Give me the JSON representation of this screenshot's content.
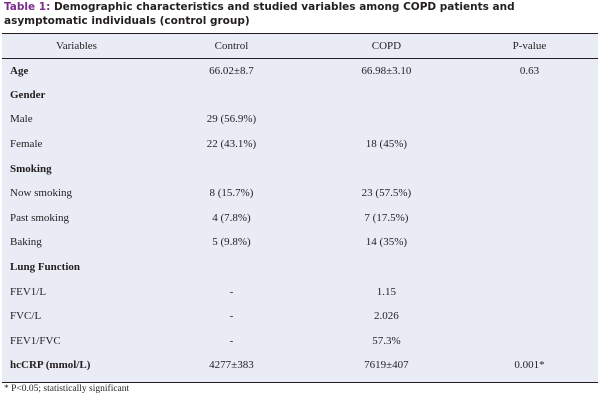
{
  "caption": {
    "label": "Table 1:",
    "text": " Demographic characteristics and studied variables among COPD patients and asymptomatic individuals (control group)"
  },
  "table": {
    "headers": [
      "Variables",
      "Control",
      "COPD",
      "P-value"
    ],
    "rows": [
      {
        "name": "row-age",
        "bold": true,
        "cells": [
          "Age",
          "66.02±8.7",
          "66.98±3.10",
          "0.63"
        ]
      },
      {
        "name": "row-gender",
        "bold": true,
        "cells": [
          "Gender",
          "",
          "",
          ""
        ]
      },
      {
        "name": "row-male",
        "bold": false,
        "cells": [
          "Male",
          "29 (56.9%)",
          "",
          ""
        ]
      },
      {
        "name": "row-female",
        "bold": false,
        "cells": [
          "Female",
          "22 (43.1%)",
          "18 (45%)",
          ""
        ]
      },
      {
        "name": "row-smoking",
        "bold": true,
        "cells": [
          "Smoking",
          "",
          "",
          ""
        ]
      },
      {
        "name": "row-now-smoking",
        "bold": false,
        "cells": [
          "Now smoking",
          "8 (15.7%)",
          "23 (57.5%)",
          ""
        ]
      },
      {
        "name": "row-past-smoking",
        "bold": false,
        "cells": [
          "Past smoking",
          "4 (7.8%)",
          "7 (17.5%)",
          ""
        ]
      },
      {
        "name": "row-baking",
        "bold": false,
        "cells": [
          "Baking",
          "5 (9.8%)",
          "14 (35%)",
          ""
        ]
      },
      {
        "name": "row-lung-function",
        "bold": true,
        "cells": [
          "Lung Function",
          "",
          "",
          ""
        ]
      },
      {
        "name": "row-fev1-l",
        "bold": false,
        "cells": [
          "FEV1/L",
          "-",
          "1.15",
          ""
        ]
      },
      {
        "name": "row-fvc-l",
        "bold": false,
        "cells": [
          "FVC/L",
          "-",
          "2.026",
          ""
        ]
      },
      {
        "name": "row-fev1-fvc",
        "bold": false,
        "cells": [
          "FEV1/FVC",
          "-",
          "57.3%",
          ""
        ]
      },
      {
        "name": "row-hccrp",
        "bold": true,
        "cells": [
          "hcCRP (mmol/L)",
          "4277±383",
          "7619±407",
          "0.001*"
        ]
      }
    ]
  },
  "footnote": "* P<0.05; statistically significant"
}
